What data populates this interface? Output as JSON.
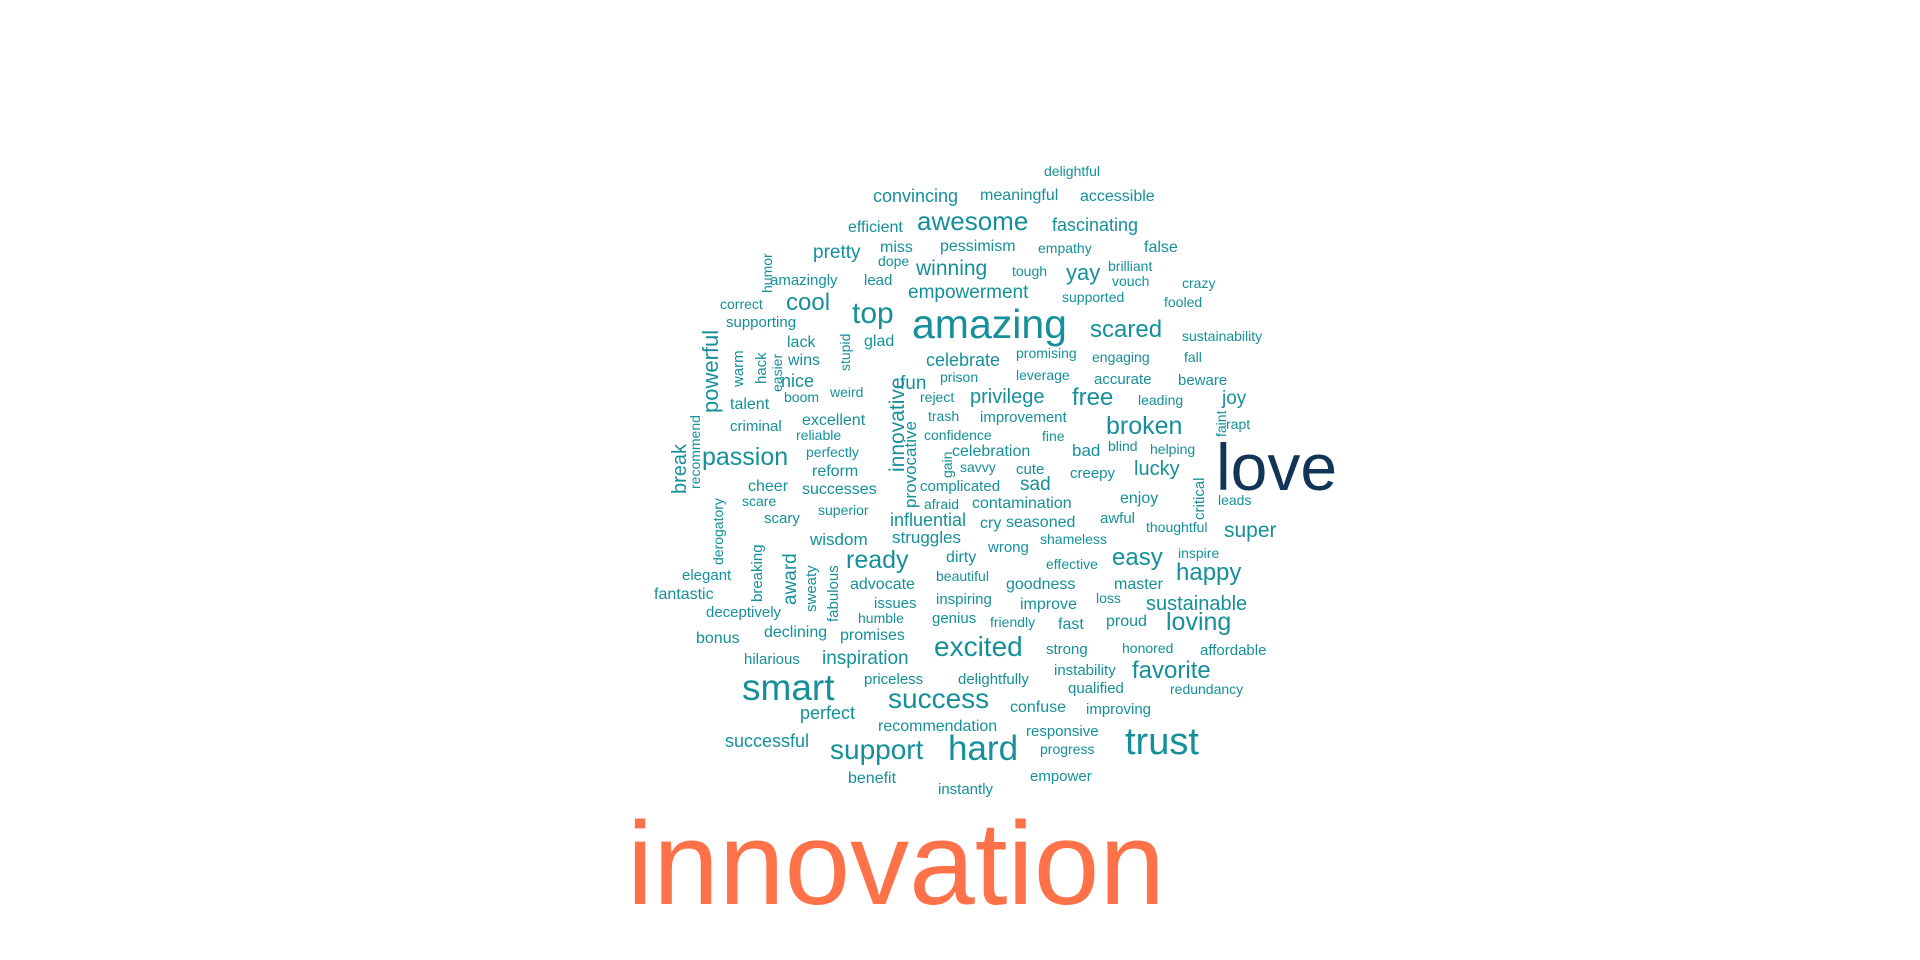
{
  "chart_data": {
    "type": "wordcloud",
    "colors": {
      "teal": "#15909a",
      "navy": "#123456",
      "coral": "#ff7148"
    },
    "words": [
      {
        "text": "innovation",
        "weight": 100,
        "color": "#ff7148"
      },
      {
        "text": "love",
        "weight": 60,
        "color": "#123456"
      },
      {
        "text": "amazing",
        "weight": 40,
        "color": "#15909a"
      },
      {
        "text": "smart",
        "weight": 35,
        "color": "#15909a"
      },
      {
        "text": "trust",
        "weight": 35,
        "color": "#15909a"
      },
      {
        "text": "hard",
        "weight": 32,
        "color": "#15909a"
      },
      {
        "text": "success",
        "weight": 28,
        "color": "#15909a"
      },
      {
        "text": "excited",
        "weight": 28,
        "color": "#15909a"
      },
      {
        "text": "top",
        "weight": 28,
        "color": "#15909a"
      },
      {
        "text": "support",
        "weight": 26,
        "color": "#15909a"
      },
      {
        "text": "awesome",
        "weight": 26,
        "color": "#15909a"
      },
      {
        "text": "passion",
        "weight": 24,
        "color": "#15909a"
      },
      {
        "text": "broken",
        "weight": 24,
        "color": "#15909a"
      },
      {
        "text": "ready",
        "weight": 24,
        "color": "#15909a"
      },
      {
        "text": "loving",
        "weight": 24,
        "color": "#15909a"
      },
      {
        "text": "scared",
        "weight": 22,
        "color": "#15909a"
      },
      {
        "text": "cool",
        "weight": 22,
        "color": "#15909a"
      },
      {
        "text": "happy",
        "weight": 22,
        "color": "#15909a"
      },
      {
        "text": "easy",
        "weight": 22,
        "color": "#15909a"
      },
      {
        "text": "favorite",
        "weight": 22,
        "color": "#15909a"
      },
      {
        "text": "free",
        "weight": 22,
        "color": "#15909a"
      },
      {
        "text": "winning",
        "weight": 20,
        "color": "#15909a"
      },
      {
        "text": "sustainable",
        "weight": 20,
        "color": "#15909a"
      },
      {
        "text": "super",
        "weight": 20,
        "color": "#15909a"
      },
      {
        "text": "innovative",
        "weight": 20,
        "color": "#15909a"
      },
      {
        "text": "powerful",
        "weight": 20,
        "color": "#15909a"
      },
      {
        "text": "lucky",
        "weight": 20,
        "color": "#15909a"
      },
      {
        "text": "yay",
        "weight": 20,
        "color": "#15909a"
      },
      {
        "text": "inspiration",
        "weight": 18,
        "color": "#15909a"
      },
      {
        "text": "privilege",
        "weight": 18,
        "color": "#15909a"
      },
      {
        "text": "empowerment",
        "weight": 18,
        "color": "#15909a"
      },
      {
        "text": "fascinating",
        "weight": 18,
        "color": "#15909a"
      },
      {
        "text": "pretty",
        "weight": 18,
        "color": "#15909a"
      },
      {
        "text": "convincing",
        "weight": 18,
        "color": "#15909a"
      },
      {
        "text": "successful",
        "weight": 18,
        "color": "#15909a"
      },
      {
        "text": "perfect",
        "weight": 18,
        "color": "#15909a"
      },
      {
        "text": "nice",
        "weight": 18,
        "color": "#15909a"
      },
      {
        "text": "influential",
        "weight": 18,
        "color": "#15909a"
      },
      {
        "text": "fun",
        "weight": 18,
        "color": "#15909a"
      },
      {
        "text": "break",
        "weight": 18,
        "color": "#15909a"
      },
      {
        "text": "celebrate",
        "weight": 18,
        "color": "#15909a"
      },
      {
        "text": "wisdom",
        "weight": 18,
        "color": "#15909a"
      },
      {
        "text": "struggles",
        "weight": 18,
        "color": "#15909a"
      },
      {
        "text": "sad",
        "weight": 18,
        "color": "#15909a"
      },
      {
        "text": "bad",
        "weight": 18,
        "color": "#15909a"
      },
      {
        "text": "joy",
        "weight": 18,
        "color": "#15909a"
      },
      {
        "text": "award",
        "weight": 18,
        "color": "#15909a"
      },
      {
        "text": "provocative",
        "weight": 18,
        "color": "#15909a"
      },
      {
        "text": "meaningful",
        "weight": 16,
        "color": "#15909a"
      },
      {
        "text": "accessible",
        "weight": 16,
        "color": "#15909a"
      },
      {
        "text": "efficient",
        "weight": 16,
        "color": "#15909a"
      },
      {
        "text": "pessimism",
        "weight": 16,
        "color": "#15909a"
      },
      {
        "text": "miss",
        "weight": 16,
        "color": "#15909a"
      },
      {
        "text": "false",
        "weight": 16,
        "color": "#15909a"
      },
      {
        "text": "wins",
        "weight": 16,
        "color": "#15909a"
      },
      {
        "text": "glad",
        "weight": 16,
        "color": "#15909a"
      },
      {
        "text": "lack",
        "weight": 16,
        "color": "#15909a"
      },
      {
        "text": "talent",
        "weight": 16,
        "color": "#15909a"
      },
      {
        "text": "excellent",
        "weight": 16,
        "color": "#15909a"
      },
      {
        "text": "celebration",
        "weight": 16,
        "color": "#15909a"
      },
      {
        "text": "successes",
        "weight": 16,
        "color": "#15909a"
      },
      {
        "text": "reform",
        "weight": 16,
        "color": "#15909a"
      },
      {
        "text": "cheer",
        "weight": 16,
        "color": "#15909a"
      },
      {
        "text": "contamination",
        "weight": 16,
        "color": "#15909a"
      },
      {
        "text": "seasoned",
        "weight": 16,
        "color": "#15909a"
      },
      {
        "text": "enjoy",
        "weight": 16,
        "color": "#15909a"
      },
      {
        "text": "advocate",
        "weight": 16,
        "color": "#15909a"
      },
      {
        "text": "goodness",
        "weight": 16,
        "color": "#15909a"
      },
      {
        "text": "improve",
        "weight": 16,
        "color": "#15909a"
      },
      {
        "text": "fast",
        "weight": 16,
        "color": "#15909a"
      },
      {
        "text": "proud",
        "weight": 16,
        "color": "#15909a"
      },
      {
        "text": "promises",
        "weight": 16,
        "color": "#15909a"
      },
      {
        "text": "declining",
        "weight": 16,
        "color": "#15909a"
      },
      {
        "text": "confuse",
        "weight": 16,
        "color": "#15909a"
      },
      {
        "text": "recommendation",
        "weight": 16,
        "color": "#15909a"
      },
      {
        "text": "fantastic",
        "weight": 16,
        "color": "#15909a"
      },
      {
        "text": "bonus",
        "weight": 16,
        "color": "#15909a"
      },
      {
        "text": "master",
        "weight": 16,
        "color": "#15909a"
      },
      {
        "text": "dirty",
        "weight": 16,
        "color": "#15909a"
      },
      {
        "text": "cry",
        "weight": 16,
        "color": "#15909a"
      },
      {
        "text": "delightful",
        "weight": 14,
        "color": "#15909a"
      },
      {
        "text": "dope",
        "weight": 14,
        "color": "#15909a"
      },
      {
        "text": "empathy",
        "weight": 14,
        "color": "#15909a"
      },
      {
        "text": "tough",
        "weight": 14,
        "color": "#15909a"
      },
      {
        "text": "brilliant",
        "weight": 14,
        "color": "#15909a"
      },
      {
        "text": "vouch",
        "weight": 14,
        "color": "#15909a"
      },
      {
        "text": "crazy",
        "weight": 14,
        "color": "#15909a"
      },
      {
        "text": "amazingly",
        "weight": 14,
        "color": "#15909a"
      },
      {
        "text": "lead",
        "weight": 14,
        "color": "#15909a"
      },
      {
        "text": "supported",
        "weight": 14,
        "color": "#15909a"
      },
      {
        "text": "fooled",
        "weight": 14,
        "color": "#15909a"
      },
      {
        "text": "correct",
        "weight": 14,
        "color": "#15909a"
      },
      {
        "text": "supporting",
        "weight": 14,
        "color": "#15909a"
      },
      {
        "text": "sustainability",
        "weight": 14,
        "color": "#15909a"
      },
      {
        "text": "promising",
        "weight": 14,
        "color": "#15909a"
      },
      {
        "text": "engaging",
        "weight": 14,
        "color": "#15909a"
      },
      {
        "text": "fall",
        "weight": 14,
        "color": "#15909a"
      },
      {
        "text": "prison",
        "weight": 14,
        "color": "#15909a"
      },
      {
        "text": "leverage",
        "weight": 14,
        "color": "#15909a"
      },
      {
        "text": "accurate",
        "weight": 14,
        "color": "#15909a"
      },
      {
        "text": "beware",
        "weight": 14,
        "color": "#15909a"
      },
      {
        "text": "boom",
        "weight": 14,
        "color": "#15909a"
      },
      {
        "text": "weird",
        "weight": 14,
        "color": "#15909a"
      },
      {
        "text": "reject",
        "weight": 14,
        "color": "#15909a"
      },
      {
        "text": "leading",
        "weight": 14,
        "color": "#15909a"
      },
      {
        "text": "trash",
        "weight": 14,
        "color": "#15909a"
      },
      {
        "text": "improvement",
        "weight": 14,
        "color": "#15909a"
      },
      {
        "text": "rapt",
        "weight": 14,
        "color": "#15909a"
      },
      {
        "text": "criminal",
        "weight": 14,
        "color": "#15909a"
      },
      {
        "text": "reliable",
        "weight": 14,
        "color": "#15909a"
      },
      {
        "text": "confidence",
        "weight": 14,
        "color": "#15909a"
      },
      {
        "text": "fine",
        "weight": 14,
        "color": "#15909a"
      },
      {
        "text": "blind",
        "weight": 14,
        "color": "#15909a"
      },
      {
        "text": "helping",
        "weight": 14,
        "color": "#15909a"
      },
      {
        "text": "perfectly",
        "weight": 14,
        "color": "#15909a"
      },
      {
        "text": "savvy",
        "weight": 14,
        "color": "#15909a"
      },
      {
        "text": "cute",
        "weight": 14,
        "color": "#15909a"
      },
      {
        "text": "creepy",
        "weight": 14,
        "color": "#15909a"
      },
      {
        "text": "complicated",
        "weight": 14,
        "color": "#15909a"
      },
      {
        "text": "leads",
        "weight": 14,
        "color": "#15909a"
      },
      {
        "text": "scare",
        "weight": 14,
        "color": "#15909a"
      },
      {
        "text": "afraid",
        "weight": 14,
        "color": "#15909a"
      },
      {
        "text": "superior",
        "weight": 14,
        "color": "#15909a"
      },
      {
        "text": "scary",
        "weight": 14,
        "color": "#15909a"
      },
      {
        "text": "awful",
        "weight": 14,
        "color": "#15909a"
      },
      {
        "text": "thoughtful",
        "weight": 14,
        "color": "#15909a"
      },
      {
        "text": "wrong",
        "weight": 14,
        "color": "#15909a"
      },
      {
        "text": "shameless",
        "weight": 14,
        "color": "#15909a"
      },
      {
        "text": "inspire",
        "weight": 14,
        "color": "#15909a"
      },
      {
        "text": "elegant",
        "weight": 14,
        "color": "#15909a"
      },
      {
        "text": "effective",
        "weight": 14,
        "color": "#15909a"
      },
      {
        "text": "beautiful",
        "weight": 14,
        "color": "#15909a"
      },
      {
        "text": "deceptively",
        "weight": 14,
        "color": "#15909a"
      },
      {
        "text": "issues",
        "weight": 14,
        "color": "#15909a"
      },
      {
        "text": "inspiring",
        "weight": 14,
        "color": "#15909a"
      },
      {
        "text": "loss",
        "weight": 14,
        "color": "#15909a"
      },
      {
        "text": "humble",
        "weight": 14,
        "color": "#15909a"
      },
      {
        "text": "genius",
        "weight": 14,
        "color": "#15909a"
      },
      {
        "text": "friendly",
        "weight": 14,
        "color": "#15909a"
      },
      {
        "text": "hilarious",
        "weight": 14,
        "color": "#15909a"
      },
      {
        "text": "strong",
        "weight": 14,
        "color": "#15909a"
      },
      {
        "text": "honored",
        "weight": 14,
        "color": "#15909a"
      },
      {
        "text": "affordable",
        "weight": 14,
        "color": "#15909a"
      },
      {
        "text": "instability",
        "weight": 14,
        "color": "#15909a"
      },
      {
        "text": "priceless",
        "weight": 14,
        "color": "#15909a"
      },
      {
        "text": "delightfully",
        "weight": 14,
        "color": "#15909a"
      },
      {
        "text": "qualified",
        "weight": 14,
        "color": "#15909a"
      },
      {
        "text": "redundancy",
        "weight": 14,
        "color": "#15909a"
      },
      {
        "text": "improving",
        "weight": 14,
        "color": "#15909a"
      },
      {
        "text": "responsive",
        "weight": 14,
        "color": "#15909a"
      },
      {
        "text": "progress",
        "weight": 14,
        "color": "#15909a"
      },
      {
        "text": "benefit",
        "weight": 14,
        "color": "#15909a"
      },
      {
        "text": "instantly",
        "weight": 14,
        "color": "#15909a"
      },
      {
        "text": "empower",
        "weight": 14,
        "color": "#15909a"
      },
      {
        "text": "humor",
        "weight": 14,
        "color": "#15909a"
      },
      {
        "text": "stupid",
        "weight": 14,
        "color": "#15909a"
      },
      {
        "text": "warm",
        "weight": 14,
        "color": "#15909a"
      },
      {
        "text": "hack",
        "weight": 14,
        "color": "#15909a"
      },
      {
        "text": "easier",
        "weight": 14,
        "color": "#15909a"
      },
      {
        "text": "recommend",
        "weight": 14,
        "color": "#15909a"
      },
      {
        "text": "derogatory",
        "weight": 14,
        "color": "#15909a"
      },
      {
        "text": "breaking",
        "weight": 14,
        "color": "#15909a"
      },
      {
        "text": "sweaty",
        "weight": 14,
        "color": "#15909a"
      },
      {
        "text": "fabulous",
        "weight": 14,
        "color": "#15909a"
      },
      {
        "text": "gain",
        "weight": 14,
        "color": "#15909a"
      },
      {
        "text": "faint",
        "weight": 14,
        "color": "#15909a"
      },
      {
        "text": "critical",
        "weight": 14,
        "color": "#15909a"
      }
    ]
  }
}
